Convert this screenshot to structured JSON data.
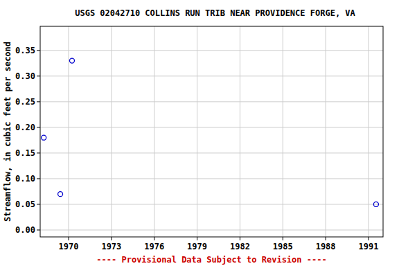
{
  "chart_data": {
    "type": "scatter",
    "title": "USGS 02042710 COLLINS RUN TRIB NEAR PROVIDENCE FORGE, VA",
    "y_label": "Streamflow, in cubic feet per second",
    "annotations": [
      "---- Provisional Data Subject to Revision ----"
    ],
    "x": [
      1968.26,
      1969.42,
      1970.24,
      1991.53
    ],
    "values": [
      0.18,
      0.07,
      0.33,
      0.05
    ],
    "color": "#0000cc",
    "marker": "circle-open",
    "xlim": [
      1968.01,
      1992.02
    ],
    "ylim": [
      -0.0135,
      0.397
    ],
    "xticks": [
      1970,
      1973,
      1976,
      1979,
      1982,
      1985,
      1988,
      1991
    ],
    "yticks": [
      {
        "value": 0,
        "label": "0.00"
      },
      {
        "value": 0.05,
        "label": "0.05"
      },
      {
        "value": 0.1,
        "label": "0.10"
      },
      {
        "value": 0.15,
        "label": "0.15"
      },
      {
        "value": 0.2,
        "label": "0.20"
      },
      {
        "value": 0.25,
        "label": "0.25"
      },
      {
        "value": 0.3,
        "label": "0.30"
      },
      {
        "value": 0.35,
        "label": "0.35"
      }
    ],
    "grid": true
  }
}
